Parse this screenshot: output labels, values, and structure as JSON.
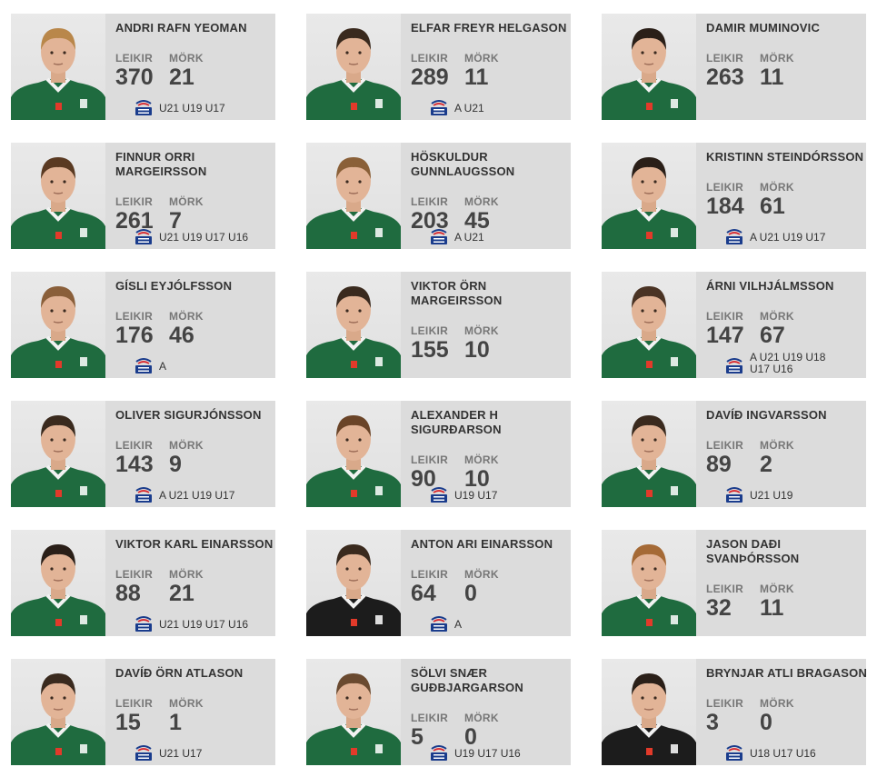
{
  "labels": {
    "games": "LEIKIR",
    "goals": "MÖRK"
  },
  "colors": {
    "card_bg": "#dcdcdc",
    "kit_green": "#1f6b3f",
    "kit_black": "#1c1c1c",
    "ksi_blue": "#1a3c8c"
  },
  "players": [
    {
      "name": "ANDRI RAFN YEOMAN",
      "games": "370",
      "goals": "21",
      "caps": "U21 U19 U17",
      "ksi": true,
      "kit": "green",
      "hair": "#b9874a"
    },
    {
      "name": "ELFAR FREYR HELGASON",
      "games": "289",
      "goals": "11",
      "caps": "A U21",
      "ksi": true,
      "kit": "green",
      "hair": "#3a2a1e"
    },
    {
      "name": "DAMIR MUMINOVIC",
      "games": "263",
      "goals": "11",
      "caps": "",
      "ksi": false,
      "kit": "green",
      "hair": "#2a1f18"
    },
    {
      "name": "FINNUR ORRI MARGEIRSSON",
      "games": "261",
      "goals": "7",
      "caps": "U21 U19 U17 U16",
      "ksi": true,
      "kit": "green",
      "hair": "#5a3a22"
    },
    {
      "name": "HÖSKULDUR GUNNLAUGSSON",
      "games": "203",
      "goals": "45",
      "caps": "A U21",
      "ksi": true,
      "kit": "green",
      "hair": "#8a6038"
    },
    {
      "name": "KRISTINN STEINDÓRSSON",
      "games": "184",
      "goals": "61",
      "caps": "A U21 U19 U17",
      "ksi": true,
      "kit": "green",
      "hair": "#2a1f18"
    },
    {
      "name": "GÍSLI EYJÓLFSSON",
      "games": "176",
      "goals": "46",
      "caps": "A",
      "ksi": true,
      "kit": "green",
      "hair": "#8a5f3a"
    },
    {
      "name": "VIKTOR ÖRN MARGEIRSSON",
      "games": "155",
      "goals": "10",
      "caps": "",
      "ksi": false,
      "kit": "green",
      "hair": "#3a2a1e"
    },
    {
      "name": "ÁRNI VILHJÁLMSSON",
      "games": "147",
      "goals": "67",
      "caps": "A U21 U19 U18 U17 U16",
      "ksi": true,
      "kit": "green",
      "hair": "#4a3324"
    },
    {
      "name": "OLIVER SIGURJÓNSSON",
      "games": "143",
      "goals": "9",
      "caps": "A U21 U19 U17",
      "ksi": true,
      "kit": "green",
      "hair": "#3a2a1e"
    },
    {
      "name": "ALEXANDER H SIGURÐARSON",
      "games": "90",
      "goals": "10",
      "caps": "U19 U17",
      "ksi": true,
      "kit": "green",
      "hair": "#6a4428"
    },
    {
      "name": "DAVÍÐ INGVARSSON",
      "games": "89",
      "goals": "2",
      "caps": "U21 U19",
      "ksi": true,
      "kit": "green",
      "hair": "#3a2a1e"
    },
    {
      "name": "VIKTOR KARL EINARSSON",
      "games": "88",
      "goals": "21",
      "caps": "U21 U19 U17 U16",
      "ksi": true,
      "kit": "green",
      "hair": "#2a1f18"
    },
    {
      "name": "ANTON ARI EINARSSON",
      "games": "64",
      "goals": "0",
      "caps": "A",
      "ksi": true,
      "kit": "black",
      "hair": "#3a2a1e"
    },
    {
      "name": "JASON DAÐI SVANÞÓRSSON",
      "games": "32",
      "goals": "11",
      "caps": "",
      "ksi": false,
      "kit": "green",
      "hair": "#a56a36"
    },
    {
      "name": "DAVÍÐ ÖRN ATLASON",
      "games": "15",
      "goals": "1",
      "caps": "U21 U17",
      "ksi": true,
      "kit": "green",
      "hair": "#3a2a1e"
    },
    {
      "name": "SÖLVI SNÆR GUÐBJARGARSON",
      "games": "5",
      "goals": "0",
      "caps": "U19 U17 U16",
      "ksi": true,
      "kit": "green",
      "hair": "#6a4a30"
    },
    {
      "name": "BRYNJAR ATLI BRAGASON",
      "games": "3",
      "goals": "0",
      "caps": "U18 U17 U16",
      "ksi": true,
      "kit": "black",
      "hair": "#2a1f18"
    }
  ]
}
